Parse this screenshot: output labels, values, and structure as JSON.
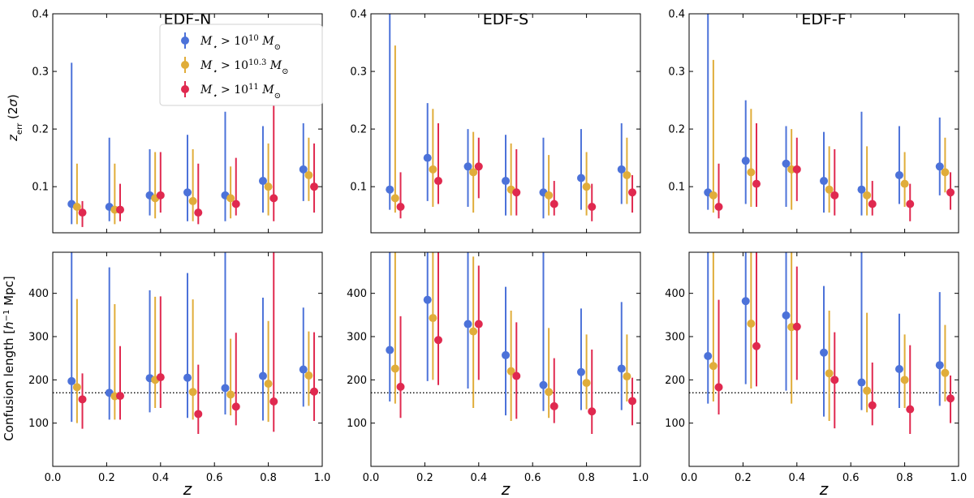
{
  "figure": {
    "panel_titles": [
      "EDF-N",
      "EDF-S",
      "EDF-F"
    ],
    "top_ylabel": "z_err (2σ)",
    "bottom_ylabel": "Confusion length [h^-1 Mpc]",
    "xlabel": "z"
  },
  "legend": {
    "entries": [
      {
        "label": "M⋆ > 10^10 M⊙",
        "color": "#4c72d9"
      },
      {
        "label": "M⋆ > 10^10.3 M⊙",
        "color": "#e0ad3a"
      },
      {
        "label": "M⋆ > 10^11 M⊙",
        "color": "#e0294f"
      }
    ],
    "placement": "upper-right of EDF-N top panel"
  },
  "chart_data": [
    {
      "panel": "EDF-N",
      "row": "top",
      "type": "scatter",
      "errorbars": true,
      "title": "EDF-N",
      "xlabel": "",
      "ylabel": "z_err (2σ)",
      "xlim": [
        0.0,
        1.0
      ],
      "ylim": [
        0.02,
        0.4
      ],
      "xticks": [
        0.0,
        0.2,
        0.4,
        0.6,
        0.8,
        1.0
      ],
      "yticks": [
        0.1,
        0.2,
        0.3,
        0.4
      ],
      "series": [
        {
          "name": "M⋆ > 10^10 M⊙",
          "color": "#4c72d9",
          "x": [
            0.07,
            0.21,
            0.36,
            0.5,
            0.64,
            0.78,
            0.93
          ],
          "y": [
            0.07,
            0.065,
            0.085,
            0.09,
            0.085,
            0.11,
            0.13
          ],
          "ylo": [
            0.035,
            0.04,
            0.05,
            0.04,
            0.04,
            0.055,
            0.075
          ],
          "yhi": [
            0.315,
            0.185,
            0.165,
            0.19,
            0.23,
            0.205,
            0.21
          ]
        },
        {
          "name": "M⋆ > 10^10.3 M⊙",
          "color": "#e0ad3a",
          "x": [
            0.09,
            0.23,
            0.38,
            0.52,
            0.66,
            0.8,
            0.95
          ],
          "y": [
            0.065,
            0.06,
            0.08,
            0.075,
            0.08,
            0.1,
            0.12
          ],
          "ylo": [
            0.035,
            0.035,
            0.045,
            0.04,
            0.045,
            0.05,
            0.075
          ],
          "yhi": [
            0.14,
            0.14,
            0.16,
            0.165,
            0.135,
            0.175,
            0.185
          ]
        },
        {
          "name": "M⋆ > 10^11 M⊙",
          "color": "#e0294f",
          "x": [
            0.11,
            0.25,
            0.4,
            0.54,
            0.68,
            0.82,
            0.97
          ],
          "y": [
            0.055,
            0.06,
            0.085,
            0.055,
            0.07,
            0.08,
            0.1
          ],
          "ylo": [
            0.03,
            0.04,
            0.055,
            0.035,
            0.05,
            0.04,
            0.055
          ],
          "yhi": [
            0.075,
            0.105,
            0.16,
            0.14,
            0.15,
            0.32,
            0.175
          ]
        }
      ]
    },
    {
      "panel": "EDF-S",
      "row": "top",
      "type": "scatter",
      "errorbars": true,
      "title": "EDF-S",
      "xlabel": "",
      "ylabel": "",
      "xlim": [
        0.0,
        1.0
      ],
      "ylim": [
        0.02,
        0.4
      ],
      "xticks": [
        0.0,
        0.2,
        0.4,
        0.6,
        0.8,
        1.0
      ],
      "yticks": [
        0.1,
        0.2,
        0.3,
        0.4
      ],
      "series": [
        {
          "name": "M⋆ > 10^10 M⊙",
          "color": "#4c72d9",
          "x": [
            0.07,
            0.21,
            0.36,
            0.5,
            0.64,
            0.78,
            0.93
          ],
          "y": [
            0.095,
            0.15,
            0.135,
            0.11,
            0.09,
            0.115,
            0.13
          ],
          "ylo": [
            0.06,
            0.075,
            0.065,
            0.05,
            0.045,
            0.06,
            0.07
          ],
          "yhi": [
            0.4,
            0.245,
            0.2,
            0.19,
            0.185,
            0.2,
            0.21
          ]
        },
        {
          "name": "M⋆ > 10^10.3 M⊙",
          "color": "#e0ad3a",
          "x": [
            0.09,
            0.23,
            0.38,
            0.52,
            0.66,
            0.8,
            0.95
          ],
          "y": [
            0.08,
            0.13,
            0.125,
            0.095,
            0.085,
            0.1,
            0.12
          ],
          "ylo": [
            0.055,
            0.065,
            0.055,
            0.05,
            0.05,
            0.05,
            0.07
          ],
          "yhi": [
            0.345,
            0.235,
            0.195,
            0.175,
            0.155,
            0.16,
            0.185
          ]
        },
        {
          "name": "M⋆ > 10^11 M⊙",
          "color": "#e0294f",
          "x": [
            0.11,
            0.25,
            0.4,
            0.54,
            0.68,
            0.82,
            0.97
          ],
          "y": [
            0.065,
            0.11,
            0.135,
            0.09,
            0.07,
            0.065,
            0.09
          ],
          "ylo": [
            0.045,
            0.07,
            0.08,
            0.05,
            0.05,
            0.04,
            0.055
          ],
          "yhi": [
            0.125,
            0.21,
            0.185,
            0.165,
            0.11,
            0.105,
            0.12
          ]
        }
      ]
    },
    {
      "panel": "EDF-F",
      "row": "top",
      "type": "scatter",
      "errorbars": true,
      "title": "EDF-F",
      "xlabel": "",
      "ylabel": "",
      "xlim": [
        0.0,
        1.0
      ],
      "ylim": [
        0.02,
        0.4
      ],
      "xticks": [
        0.0,
        0.2,
        0.4,
        0.6,
        0.8,
        1.0
      ],
      "yticks": [
        0.1,
        0.2,
        0.3,
        0.4
      ],
      "series": [
        {
          "name": "M⋆ > 10^10 M⊙",
          "color": "#4c72d9",
          "x": [
            0.07,
            0.21,
            0.36,
            0.5,
            0.64,
            0.78,
            0.93
          ],
          "y": [
            0.09,
            0.145,
            0.14,
            0.11,
            0.095,
            0.12,
            0.135
          ],
          "ylo": [
            0.06,
            0.07,
            0.065,
            0.055,
            0.05,
            0.07,
            0.085
          ],
          "yhi": [
            0.4,
            0.25,
            0.205,
            0.195,
            0.23,
            0.205,
            0.22
          ]
        },
        {
          "name": "M⋆ > 10^10.3 M⊙",
          "color": "#e0ad3a",
          "x": [
            0.09,
            0.23,
            0.38,
            0.52,
            0.66,
            0.8,
            0.95
          ],
          "y": [
            0.085,
            0.125,
            0.13,
            0.095,
            0.085,
            0.105,
            0.125
          ],
          "ylo": [
            0.055,
            0.065,
            0.06,
            0.055,
            0.05,
            0.065,
            0.09
          ],
          "yhi": [
            0.32,
            0.235,
            0.2,
            0.17,
            0.17,
            0.16,
            0.185
          ]
        },
        {
          "name": "M⋆ > 10^11 M⊙",
          "color": "#e0294f",
          "x": [
            0.11,
            0.25,
            0.4,
            0.54,
            0.68,
            0.82,
            0.97
          ],
          "y": [
            0.065,
            0.105,
            0.13,
            0.085,
            0.07,
            0.07,
            0.09
          ],
          "ylo": [
            0.045,
            0.065,
            0.075,
            0.05,
            0.05,
            0.04,
            0.06
          ],
          "yhi": [
            0.14,
            0.21,
            0.185,
            0.165,
            0.11,
            0.105,
            0.125
          ]
        }
      ]
    },
    {
      "panel": "EDF-N",
      "row": "bottom",
      "type": "scatter",
      "errorbars": true,
      "title": "",
      "xlabel": "z",
      "ylabel": "Confusion length [h^-1 Mpc]",
      "xlim": [
        0.0,
        1.0
      ],
      "ylim": [
        0,
        495
      ],
      "xticks": [
        0.0,
        0.2,
        0.4,
        0.6,
        0.8,
        1.0
      ],
      "yticks": [
        100,
        200,
        300,
        400
      ],
      "hline": {
        "y": 170,
        "style": "dotted"
      },
      "series": [
        {
          "name": "M⋆ > 10^10 M⊙",
          "color": "#4c72d9",
          "x": [
            0.07,
            0.21,
            0.36,
            0.5,
            0.64,
            0.78,
            0.93
          ],
          "y": [
            197,
            170,
            204,
            205,
            181,
            209,
            224
          ],
          "ylo": [
            103,
            108,
            125,
            112,
            120,
            106,
            138
          ],
          "yhi": [
            495,
            460,
            407,
            447,
            495,
            390,
            367
          ]
        },
        {
          "name": "M⋆ > 10^10.3 M⊙",
          "color": "#e0ad3a",
          "x": [
            0.09,
            0.23,
            0.38,
            0.52,
            0.66,
            0.8,
            0.95
          ],
          "y": [
            183,
            162,
            200,
            172,
            166,
            191,
            210
          ],
          "ylo": [
            100,
            108,
            135,
            108,
            118,
            103,
            140
          ],
          "yhi": [
            387,
            375,
            392,
            386,
            295,
            336,
            312
          ]
        },
        {
          "name": "M⋆ > 10^11 M⊙",
          "color": "#e0294f",
          "x": [
            0.11,
            0.25,
            0.4,
            0.54,
            0.68,
            0.82,
            0.97
          ],
          "y": [
            155,
            163,
            206,
            121,
            138,
            150,
            173
          ],
          "ylo": [
            87,
            108,
            135,
            75,
            95,
            80,
            105
          ],
          "yhi": [
            215,
            278,
            393,
            235,
            309,
            495,
            310
          ]
        }
      ]
    },
    {
      "panel": "EDF-S",
      "row": "bottom",
      "type": "scatter",
      "errorbars": true,
      "title": "",
      "xlabel": "z",
      "ylabel": "",
      "xlim": [
        0.0,
        1.0
      ],
      "ylim": [
        0,
        495
      ],
      "xticks": [
        0.0,
        0.2,
        0.4,
        0.6,
        0.8,
        1.0
      ],
      "yticks": [
        100,
        200,
        300,
        400
      ],
      "hline": {
        "y": 170,
        "style": "dotted"
      },
      "series": [
        {
          "name": "M⋆ > 10^10 M⊙",
          "color": "#4c72d9",
          "x": [
            0.07,
            0.21,
            0.36,
            0.5,
            0.64,
            0.78,
            0.93
          ],
          "y": [
            269,
            385,
            329,
            257,
            188,
            218,
            226
          ],
          "ylo": [
            150,
            197,
            180,
            118,
            128,
            130,
            130
          ],
          "yhi": [
            495,
            495,
            495,
            415,
            495,
            365,
            380
          ]
        },
        {
          "name": "M⋆ > 10^10.3 M⊙",
          "color": "#e0ad3a",
          "x": [
            0.09,
            0.23,
            0.38,
            0.52,
            0.66,
            0.8,
            0.95
          ],
          "y": [
            226,
            343,
            312,
            220,
            172,
            193,
            208
          ],
          "ylo": [
            145,
            200,
            135,
            105,
            112,
            132,
            150
          ],
          "yhi": [
            495,
            495,
            485,
            360,
            320,
            305,
            305
          ]
        },
        {
          "name": "M⋆ > 10^11 M⊙",
          "color": "#e0294f",
          "x": [
            0.11,
            0.25,
            0.4,
            0.54,
            0.68,
            0.82,
            0.97
          ],
          "y": [
            184,
            292,
            329,
            209,
            139,
            127,
            151
          ],
          "ylo": [
            112,
            188,
            200,
            110,
            100,
            75,
            95
          ],
          "yhi": [
            347,
            495,
            464,
            333,
            250,
            270,
            205
          ]
        }
      ]
    },
    {
      "panel": "EDF-F",
      "row": "bottom",
      "type": "scatter",
      "errorbars": true,
      "title": "",
      "xlabel": "z",
      "ylabel": "",
      "xlim": [
        0.0,
        1.0
      ],
      "ylim": [
        0,
        495
      ],
      "xticks": [
        0.0,
        0.2,
        0.4,
        0.6,
        0.8,
        1.0
      ],
      "yticks": [
        100,
        200,
        300,
        400
      ],
      "hline": {
        "y": 170,
        "style": "dotted"
      },
      "series": [
        {
          "name": "M⋆ > 10^10 M⊙",
          "color": "#4c72d9",
          "x": [
            0.07,
            0.21,
            0.36,
            0.5,
            0.64,
            0.78,
            0.93
          ],
          "y": [
            255,
            382,
            349,
            263,
            194,
            225,
            234
          ],
          "ylo": [
            145,
            190,
            175,
            115,
            130,
            135,
            140
          ],
          "yhi": [
            495,
            495,
            495,
            417,
            495,
            353,
            403
          ]
        },
        {
          "name": "M⋆ > 10^10.3 M⊙",
          "color": "#e0ad3a",
          "x": [
            0.09,
            0.23,
            0.38,
            0.52,
            0.66,
            0.8,
            0.95
          ],
          "y": [
            232,
            330,
            322,
            215,
            175,
            200,
            216
          ],
          "ylo": [
            150,
            180,
            145,
            105,
            125,
            135,
            150
          ],
          "yhi": [
            495,
            495,
            495,
            360,
            355,
            305,
            327
          ]
        },
        {
          "name": "M⋆ > 10^11 M⊙",
          "color": "#e0294f",
          "x": [
            0.11,
            0.25,
            0.4,
            0.54,
            0.68,
            0.82,
            0.97
          ],
          "y": [
            183,
            278,
            323,
            200,
            141,
            132,
            157
          ],
          "ylo": [
            120,
            185,
            200,
            88,
            95,
            75,
            100
          ],
          "yhi": [
            385,
            495,
            462,
            310,
            240,
            280,
            210
          ]
        }
      ]
    }
  ]
}
